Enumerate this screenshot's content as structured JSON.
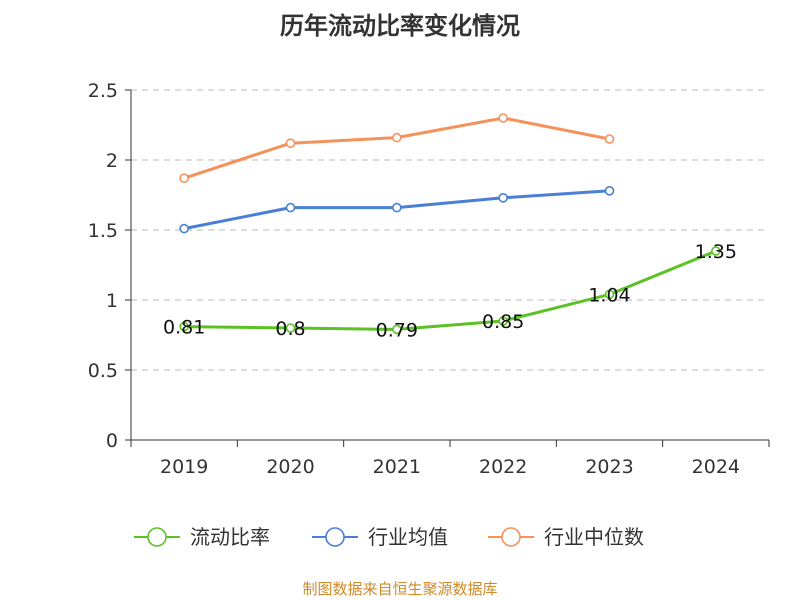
{
  "chart_data": {
    "type": "line",
    "title": "历年流动比率变化情况",
    "categories": [
      "2019",
      "2020",
      "2021",
      "2022",
      "2023",
      "2024"
    ],
    "ylim": [
      0,
      2.5
    ],
    "yticks": [
      "0",
      "0.5",
      "1",
      "1.5",
      "2",
      "2.5"
    ],
    "ytick_values": [
      0,
      0.5,
      1,
      1.5,
      2,
      2.5
    ],
    "grid": true,
    "legend_position": "bottom",
    "series": [
      {
        "name": "流动比率",
        "color": "#5cc124",
        "values": [
          0.81,
          0.8,
          0.79,
          0.85,
          1.04,
          1.35
        ],
        "labels": [
          "0.81",
          "0.8",
          "0.79",
          "0.85",
          "1.04",
          "1.35"
        ]
      },
      {
        "name": "行业均值",
        "color": "#4a7fd6",
        "values": [
          1.51,
          1.66,
          1.66,
          1.73,
          1.78,
          null
        ]
      },
      {
        "name": "行业中位数",
        "color": "#f5915a",
        "values": [
          1.87,
          2.12,
          2.16,
          2.3,
          2.15,
          null
        ]
      }
    ]
  },
  "source": "制图数据来自恒生聚源数据库"
}
